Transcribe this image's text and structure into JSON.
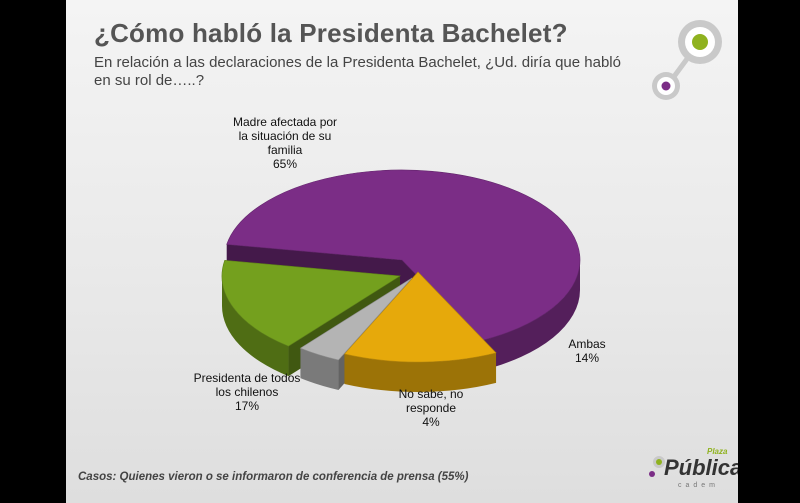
{
  "title": "¿Cómo habló la Presidenta Bachelet?",
  "subtitle": "En relación a las declaraciones de la Presidenta Bachelet, ¿Ud. diría que habló en su rol de…..?",
  "footnote": "Casos: Quienes vieron o se informaron de conferencia de prensa (55%)",
  "brand": {
    "main": "Pública",
    "tag": "Plaza",
    "sub": "cadem"
  },
  "chart_data": {
    "type": "pie",
    "title": "¿Cómo habló la Presidenta Bachelet?",
    "slices": [
      {
        "label_lines": [
          "Madre afectada por",
          "la situación de su",
          "familia"
        ],
        "value": 65,
        "value_label": "65%",
        "color": "#7b2d86"
      },
      {
        "label_lines": [
          "Ambas"
        ],
        "value": 14,
        "value_label": "14%",
        "color": "#e6a90b"
      },
      {
        "label_lines": [
          "No sabe, no",
          "responde"
        ],
        "value": 4,
        "value_label": "4%",
        "color": "#b4b4b4"
      },
      {
        "label_lines": [
          "Presidenta de todos",
          "los chilenos"
        ],
        "value": 17,
        "value_label": "17%",
        "color": "#74a01e"
      }
    ]
  },
  "colors": {
    "accent_green": "#8fb21f",
    "accent_purple": "#7b2d86"
  }
}
